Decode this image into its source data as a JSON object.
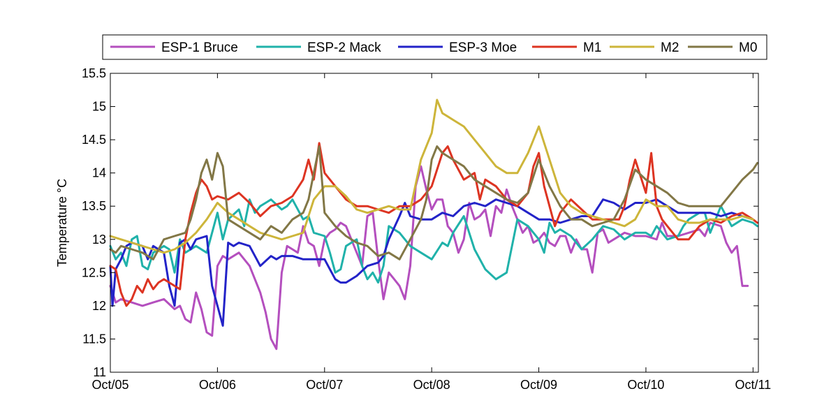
{
  "chart_data": {
    "type": "line",
    "title": "",
    "xlabel": "",
    "ylabel": "Temperature °C",
    "xlim": [
      0,
      6.05
    ],
    "ylim": [
      11,
      15.5
    ],
    "x_ticks": [
      0,
      1,
      2,
      3,
      4,
      5,
      6
    ],
    "x_tick_labels": [
      "Oct/05",
      "Oct/06",
      "Oct/07",
      "Oct/08",
      "Oct/09",
      "Oct/10",
      "Oct/11"
    ],
    "y_ticks": [
      11,
      11.5,
      12,
      12.5,
      13,
      13.5,
      14,
      14.5,
      15,
      15.5
    ],
    "y_tick_labels": [
      "11",
      "11.5",
      "12",
      "12.5",
      "13",
      "13.5",
      "14",
      "14.5",
      "15",
      "15.5"
    ],
    "legend_position": "top-outside",
    "grid": false,
    "series": [
      {
        "name": "ESP-1 Bruce",
        "color": "#b44fbe",
        "x": [
          0,
          0.05,
          0.1,
          0.2,
          0.3,
          0.4,
          0.5,
          0.6,
          0.65,
          0.7,
          0.75,
          0.8,
          0.85,
          0.9,
          0.95,
          1.0,
          1.05,
          1.1,
          1.2,
          1.3,
          1.4,
          1.45,
          1.5,
          1.55,
          1.6,
          1.65,
          1.7,
          1.75,
          1.8,
          1.85,
          1.9,
          1.95,
          2.0,
          2.05,
          2.1,
          2.15,
          2.2,
          2.3,
          2.35,
          2.4,
          2.45,
          2.5,
          2.55,
          2.6,
          2.65,
          2.7,
          2.75,
          2.8,
          2.85,
          2.9,
          2.95,
          3.0,
          3.05,
          3.1,
          3.15,
          3.2,
          3.25,
          3.3,
          3.35,
          3.4,
          3.45,
          3.5,
          3.55,
          3.6,
          3.65,
          3.7,
          3.75,
          3.8,
          3.85,
          3.9,
          3.95,
          4.0,
          4.05,
          4.1,
          4.15,
          4.2,
          4.25,
          4.3,
          4.35,
          4.4,
          4.45,
          4.5,
          4.55,
          4.6,
          4.65,
          4.7,
          4.8,
          4.9,
          5.0,
          5.1,
          5.15,
          5.2,
          5.3,
          5.4,
          5.5,
          5.55,
          5.6,
          5.7,
          5.75,
          5.8,
          5.85,
          5.9,
          5.95
        ],
        "y": [
          12.3,
          12.05,
          12.1,
          12.05,
          12.0,
          12.05,
          12.1,
          11.95,
          12.0,
          11.8,
          11.75,
          12.2,
          11.95,
          11.6,
          11.55,
          12.6,
          12.75,
          12.7,
          12.8,
          12.6,
          12.2,
          11.9,
          11.5,
          11.35,
          12.5,
          12.9,
          12.85,
          12.8,
          13.2,
          12.95,
          12.9,
          12.6,
          13.0,
          13.1,
          13.15,
          13.25,
          13.2,
          12.8,
          12.6,
          13.35,
          13.4,
          12.7,
          12.1,
          12.5,
          12.4,
          12.3,
          12.1,
          12.6,
          13.8,
          14.1,
          13.75,
          13.45,
          13.6,
          13.6,
          13.2,
          13.1,
          12.8,
          13.0,
          13.55,
          13.3,
          13.35,
          13.45,
          13.05,
          13.5,
          13.4,
          13.75,
          13.5,
          13.3,
          13.1,
          13.2,
          12.95,
          13.0,
          13.1,
          12.95,
          12.9,
          13.05,
          13.05,
          12.8,
          13.0,
          12.85,
          12.85,
          12.5,
          13.1,
          13.15,
          12.95,
          13.0,
          13.1,
          13.05,
          13.05,
          13.0,
          13.25,
          13.05,
          13.05,
          13.1,
          13.15,
          13.05,
          13.25,
          13.2,
          12.95,
          12.8,
          12.9,
          12.3,
          12.3
        ]
      },
      {
        "name": "ESP-2 Mack",
        "color": "#20b2aa",
        "x": [
          0,
          0.05,
          0.1,
          0.15,
          0.2,
          0.25,
          0.3,
          0.35,
          0.4,
          0.5,
          0.55,
          0.6,
          0.65,
          0.7,
          0.8,
          0.9,
          1.0,
          1.05,
          1.1,
          1.2,
          1.25,
          1.3,
          1.35,
          1.4,
          1.5,
          1.6,
          1.65,
          1.7,
          1.8,
          1.85,
          1.9,
          2.0,
          2.05,
          2.1,
          2.15,
          2.2,
          2.3,
          2.35,
          2.4,
          2.45,
          2.5,
          2.55,
          2.6,
          2.7,
          2.8,
          2.9,
          3.0,
          3.1,
          3.15,
          3.2,
          3.3,
          3.4,
          3.5,
          3.6,
          3.7,
          3.8,
          3.9,
          4.0,
          4.05,
          4.1,
          4.15,
          4.2,
          4.3,
          4.4,
          4.5,
          4.6,
          4.7,
          4.8,
          4.9,
          5.0,
          5.05,
          5.1,
          5.2,
          5.3,
          5.35,
          5.4,
          5.5,
          5.55,
          5.6,
          5.7,
          5.8,
          5.9,
          6.0,
          6.04
        ],
        "y": [
          12.9,
          12.7,
          12.8,
          12.6,
          13.0,
          13.05,
          12.6,
          12.55,
          12.8,
          12.9,
          12.85,
          12.5,
          13.0,
          12.8,
          12.9,
          12.8,
          13.4,
          13.0,
          13.3,
          13.45,
          13.2,
          13.6,
          13.4,
          13.5,
          13.6,
          13.45,
          13.5,
          13.6,
          13.3,
          13.35,
          13.1,
          13.05,
          12.8,
          12.5,
          12.55,
          12.9,
          13.0,
          12.6,
          12.4,
          12.5,
          12.35,
          12.6,
          13.2,
          13.1,
          12.9,
          12.8,
          12.7,
          12.95,
          12.9,
          13.1,
          13.35,
          12.85,
          12.55,
          12.4,
          12.5,
          13.3,
          13.2,
          13.0,
          12.8,
          13.25,
          13.1,
          13.15,
          13.05,
          12.85,
          13.0,
          13.2,
          13.15,
          13.0,
          13.1,
          13.1,
          13.05,
          13.2,
          13.0,
          13.05,
          13.2,
          13.3,
          13.4,
          13.4,
          13.1,
          13.5,
          13.2,
          13.3,
          13.25,
          13.2
        ]
      },
      {
        "name": "ESP-3 Moe",
        "color": "#2323c8",
        "x": [
          0,
          0.02,
          0.05,
          0.1,
          0.15,
          0.2,
          0.3,
          0.35,
          0.4,
          0.5,
          0.55,
          0.6,
          0.65,
          0.7,
          0.75,
          0.8,
          0.9,
          0.95,
          1.0,
          1.05,
          1.1,
          1.15,
          1.2,
          1.3,
          1.4,
          1.5,
          1.55,
          1.6,
          1.7,
          1.8,
          1.9,
          2.0,
          2.05,
          2.1,
          2.15,
          2.2,
          2.3,
          2.4,
          2.5,
          2.55,
          2.6,
          2.7,
          2.75,
          2.8,
          2.9,
          3.0,
          3.1,
          3.2,
          3.3,
          3.4,
          3.5,
          3.6,
          3.7,
          3.8,
          3.9,
          4.0,
          4.1,
          4.2,
          4.3,
          4.4,
          4.5,
          4.6,
          4.7,
          4.8,
          4.9,
          5.0,
          5.1,
          5.2,
          5.3,
          5.4,
          5.5,
          5.6,
          5.7,
          5.8,
          5.9,
          6.0
        ],
        "y": [
          12.6,
          12.0,
          12.55,
          12.7,
          12.9,
          12.95,
          12.9,
          12.7,
          12.9,
          12.8,
          12.3,
          12.0,
          12.95,
          13.0,
          12.85,
          13.0,
          13.05,
          12.3,
          12.0,
          11.7,
          12.95,
          12.9,
          12.95,
          12.9,
          12.6,
          12.75,
          12.7,
          12.75,
          12.75,
          12.7,
          12.7,
          12.7,
          12.55,
          12.4,
          12.35,
          12.35,
          12.45,
          12.6,
          12.65,
          12.75,
          13.0,
          13.35,
          13.55,
          13.35,
          13.3,
          13.3,
          13.4,
          13.35,
          13.5,
          13.55,
          13.5,
          13.6,
          13.55,
          13.5,
          13.4,
          13.3,
          13.3,
          13.25,
          13.3,
          13.35,
          13.35,
          13.6,
          13.55,
          13.45,
          13.55,
          13.55,
          13.6,
          13.5,
          13.4,
          13.4,
          13.4,
          13.4,
          13.35,
          13.4,
          13.35,
          13.3
        ]
      },
      {
        "name": "M1",
        "color": "#dd3422",
        "x": [
          0,
          0.05,
          0.1,
          0.15,
          0.2,
          0.25,
          0.3,
          0.35,
          0.4,
          0.45,
          0.5,
          0.55,
          0.6,
          0.65,
          0.7,
          0.75,
          0.8,
          0.85,
          0.9,
          0.95,
          1.0,
          1.1,
          1.2,
          1.3,
          1.4,
          1.5,
          1.6,
          1.7,
          1.8,
          1.85,
          1.9,
          1.95,
          2.0,
          2.1,
          2.2,
          2.3,
          2.4,
          2.5,
          2.6,
          2.7,
          2.8,
          2.9,
          3.0,
          3.1,
          3.15,
          3.2,
          3.3,
          3.4,
          3.45,
          3.5,
          3.6,
          3.7,
          3.8,
          3.9,
          3.95,
          4.0,
          4.05,
          4.1,
          4.15,
          4.2,
          4.3,
          4.4,
          4.5,
          4.6,
          4.7,
          4.75,
          4.8,
          4.85,
          4.9,
          5.0,
          5.05,
          5.1,
          5.15,
          5.2,
          5.3,
          5.4,
          5.5,
          5.6,
          5.7,
          5.8,
          5.9,
          6.0,
          6.04
        ],
        "y": [
          12.6,
          12.55,
          12.2,
          12.0,
          12.1,
          12.3,
          12.2,
          12.4,
          12.25,
          12.35,
          12.4,
          12.35,
          12.3,
          12.25,
          13.0,
          13.4,
          13.7,
          13.9,
          13.8,
          13.6,
          13.65,
          13.6,
          13.7,
          13.55,
          13.35,
          13.5,
          13.55,
          13.65,
          13.9,
          14.2,
          13.9,
          14.45,
          14.0,
          13.8,
          13.6,
          13.5,
          13.5,
          13.45,
          13.4,
          13.5,
          13.5,
          13.6,
          13.8,
          14.3,
          14.4,
          14.2,
          13.9,
          14.0,
          13.6,
          13.9,
          13.8,
          13.6,
          13.5,
          13.7,
          14.1,
          14.3,
          13.8,
          13.5,
          13.2,
          13.4,
          13.6,
          13.45,
          13.3,
          13.3,
          13.3,
          13.3,
          13.5,
          13.9,
          14.2,
          13.7,
          14.3,
          13.5,
          13.3,
          13.2,
          13.0,
          13.0,
          13.2,
          13.3,
          13.25,
          13.35,
          13.4,
          13.3,
          13.25
        ]
      },
      {
        "name": "M2",
        "color": "#cdb53a",
        "x": [
          0,
          0.1,
          0.2,
          0.3,
          0.4,
          0.5,
          0.6,
          0.7,
          0.8,
          0.9,
          1.0,
          1.1,
          1.2,
          1.3,
          1.4,
          1.5,
          1.6,
          1.7,
          1.8,
          1.9,
          2.0,
          2.1,
          2.2,
          2.3,
          2.4,
          2.5,
          2.6,
          2.7,
          2.8,
          2.9,
          3.0,
          3.05,
          3.1,
          3.15,
          3.2,
          3.3,
          3.4,
          3.5,
          3.6,
          3.7,
          3.8,
          3.9,
          4.0,
          4.1,
          4.2,
          4.3,
          4.4,
          4.5,
          4.6,
          4.7,
          4.8,
          4.9,
          5.0,
          5.1,
          5.2,
          5.3,
          5.4,
          5.5,
          5.6,
          5.7,
          5.8,
          5.9,
          6.0
        ],
        "y": [
          13.05,
          13.0,
          12.95,
          12.9,
          12.85,
          12.8,
          12.85,
          12.95,
          13.1,
          13.3,
          13.55,
          13.4,
          13.3,
          13.2,
          13.1,
          13.05,
          13.0,
          13.05,
          13.1,
          13.6,
          13.8,
          13.8,
          13.65,
          13.45,
          13.4,
          13.45,
          13.5,
          13.45,
          13.45,
          14.2,
          14.6,
          15.1,
          14.9,
          14.85,
          14.8,
          14.7,
          14.5,
          14.3,
          14.1,
          14.0,
          14.0,
          14.3,
          14.7,
          14.2,
          13.7,
          13.5,
          13.4,
          13.35,
          13.3,
          13.25,
          13.2,
          13.3,
          13.6,
          13.5,
          13.5,
          13.3,
          13.25,
          13.25,
          13.3,
          13.3,
          13.3,
          13.35,
          13.3
        ]
      },
      {
        "name": "M0",
        "color": "#827746",
        "x": [
          0,
          0.05,
          0.1,
          0.2,
          0.3,
          0.4,
          0.5,
          0.6,
          0.7,
          0.75,
          0.8,
          0.85,
          0.9,
          0.95,
          1.0,
          1.05,
          1.1,
          1.2,
          1.3,
          1.4,
          1.5,
          1.6,
          1.7,
          1.8,
          1.85,
          1.9,
          1.95,
          2.0,
          2.1,
          2.2,
          2.3,
          2.4,
          2.5,
          2.6,
          2.7,
          2.8,
          2.9,
          2.95,
          3.0,
          3.05,
          3.1,
          3.2,
          3.3,
          3.4,
          3.5,
          3.6,
          3.7,
          3.8,
          3.9,
          4.0,
          4.1,
          4.2,
          4.3,
          4.4,
          4.5,
          4.6,
          4.7,
          4.8,
          4.9,
          5.0,
          5.1,
          5.2,
          5.3,
          5.4,
          5.5,
          5.6,
          5.7,
          5.8,
          5.9,
          6.0,
          6.04
        ],
        "y": [
          12.85,
          12.8,
          12.9,
          12.85,
          12.8,
          12.7,
          13.0,
          13.05,
          13.1,
          13.3,
          13.6,
          14.0,
          14.2,
          13.9,
          14.3,
          14.1,
          13.3,
          13.2,
          13.1,
          13.0,
          13.2,
          13.1,
          13.3,
          13.4,
          13.6,
          14.0,
          14.4,
          13.4,
          13.2,
          13.05,
          12.95,
          12.9,
          12.75,
          12.8,
          12.7,
          13.0,
          13.3,
          13.6,
          14.2,
          14.4,
          14.3,
          14.2,
          14.1,
          13.9,
          13.8,
          13.7,
          13.6,
          13.55,
          13.7,
          14.2,
          13.8,
          13.5,
          13.3,
          13.3,
          13.2,
          13.25,
          13.3,
          13.6,
          14.05,
          13.9,
          13.8,
          13.7,
          13.55,
          13.5,
          13.5,
          13.5,
          13.5,
          13.7,
          13.9,
          14.05,
          14.15
        ]
      }
    ]
  }
}
